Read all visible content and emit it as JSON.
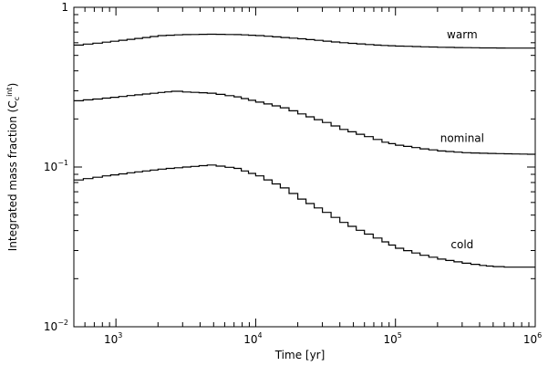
{
  "chart_data": {
    "type": "line",
    "xscale": "log",
    "yscale": "log",
    "xlim": [
      500,
      1000000
    ],
    "ylim": [
      0.01,
      1
    ],
    "xlabel": "Time [yr]",
    "ylabel_main": "Integrated mass fraction (C",
    "ylabel_sub": "c",
    "ylabel_sup": "int",
    "ylabel_close": ")",
    "xticks": [
      {
        "value": 1000,
        "base": "10",
        "exp": "3"
      },
      {
        "value": 10000,
        "base": "10",
        "exp": "4"
      },
      {
        "value": 100000,
        "base": "10",
        "exp": "5"
      },
      {
        "value": 1000000,
        "base": "10",
        "exp": "6"
      }
    ],
    "yticks": [
      {
        "value": 1,
        "text": "1",
        "base": "",
        "exp": ""
      },
      {
        "value": 0.1,
        "text": "",
        "base": "10",
        "exp": "−1"
      },
      {
        "value": 0.01,
        "text": "",
        "base": "10",
        "exp": "−2"
      }
    ],
    "grid": false,
    "legend": "none",
    "series": [
      {
        "name": "warm",
        "x": [
          500,
          800,
          1200,
          2000,
          3000,
          4500,
          7000,
          10000,
          20000,
          40000,
          70000,
          100000,
          200000,
          400000,
          700000,
          1000000
        ],
        "y": [
          0.58,
          0.605,
          0.63,
          0.665,
          0.675,
          0.678,
          0.675,
          0.665,
          0.635,
          0.6,
          0.58,
          0.572,
          0.562,
          0.557,
          0.555,
          0.555
        ]
      },
      {
        "name": "nominal",
        "x": [
          500,
          800,
          1200,
          2000,
          2500,
          3000,
          4500,
          7000,
          10000,
          15000,
          20000,
          30000,
          40000,
          60000,
          80000,
          100000,
          150000,
          200000,
          300000,
          400000,
          600000,
          1000000
        ],
        "y": [
          0.26,
          0.27,
          0.28,
          0.293,
          0.298,
          0.295,
          0.29,
          0.275,
          0.255,
          0.235,
          0.215,
          0.19,
          0.172,
          0.155,
          0.143,
          0.137,
          0.13,
          0.126,
          0.123,
          0.122,
          0.121,
          0.12
        ]
      },
      {
        "name": "cold",
        "x": [
          500,
          800,
          1200,
          2000,
          3000,
          4500,
          7000,
          10000,
          15000,
          20000,
          30000,
          40000,
          60000,
          80000,
          100000,
          150000,
          200000,
          300000,
          400000,
          500000,
          600000,
          1000000
        ],
        "y": [
          0.083,
          0.088,
          0.092,
          0.097,
          0.1,
          0.103,
          0.098,
          0.088,
          0.074,
          0.063,
          0.052,
          0.045,
          0.038,
          0.034,
          0.031,
          0.028,
          0.0265,
          0.025,
          0.0242,
          0.0238,
          0.0236,
          0.0236
        ]
      }
    ]
  }
}
